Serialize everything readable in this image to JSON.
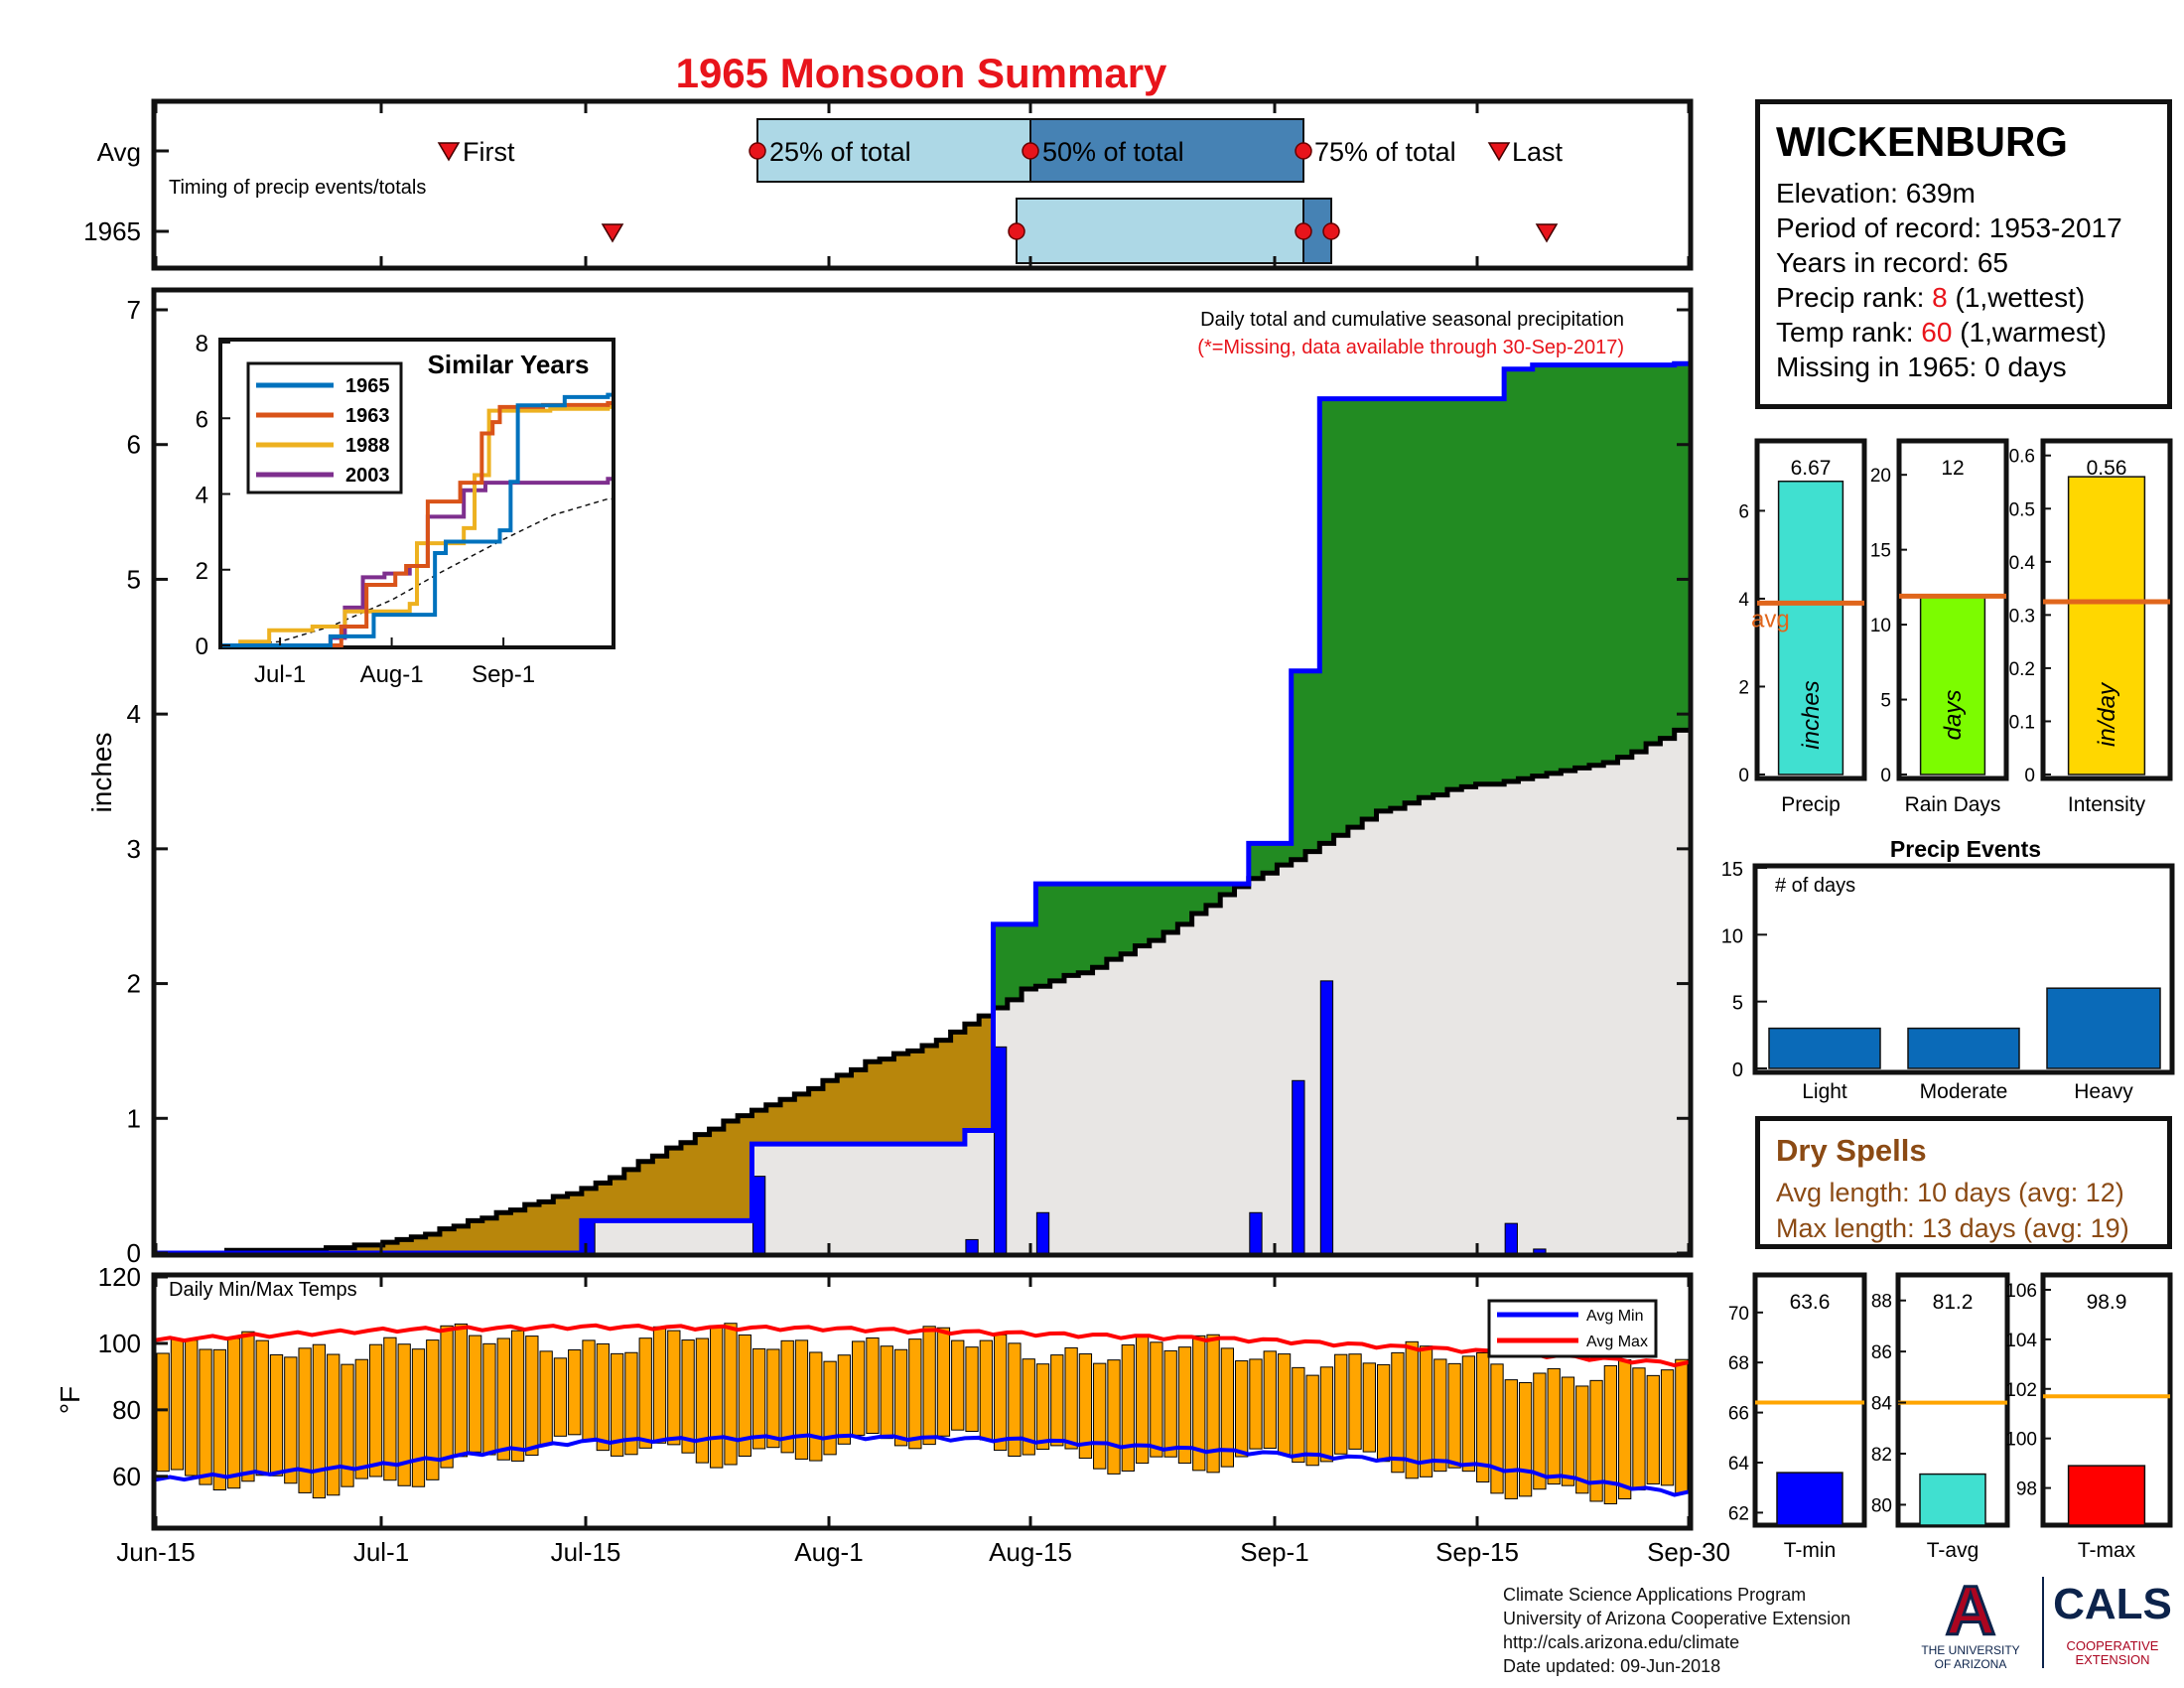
{
  "title": "1965 Monsoon Summary",
  "timing_panel": {
    "row_labels": [
      "Avg",
      "1965"
    ],
    "caption": "Timing of precip events/totals",
    "marker_labels": {
      "first": "First",
      "p25": "25% of total",
      "p50": "50% of total",
      "p75": "75% of total",
      "last": "Last"
    }
  },
  "main_panel": {
    "title": "Daily total and cumulative seasonal precipitation",
    "note": "(*=Missing, data available through 30-Sep-2017)",
    "ylabel": "inches",
    "y_ticks": [
      "0",
      "1",
      "2",
      "3",
      "4",
      "5",
      "6",
      "7"
    ],
    "x_ticks": [
      "Jun-15",
      "Jul-1",
      "Jul-15",
      "Aug-1",
      "Aug-15",
      "Sep-1",
      "Sep-15",
      "Sep-30"
    ]
  },
  "similar_years": {
    "title": "Similar Years",
    "legend": [
      "1965",
      "1963",
      "1988",
      "2003"
    ],
    "y_ticks": [
      "0",
      "2",
      "4",
      "6",
      "8"
    ],
    "x_ticks": [
      "Jul-1",
      "Aug-1",
      "Sep-1"
    ]
  },
  "temp_panel": {
    "caption": "Daily Min/Max Temps",
    "ylabel": "°F",
    "y_ticks": [
      "60",
      "80",
      "100",
      "120"
    ],
    "legend": [
      "Avg Min",
      "Avg Max"
    ]
  },
  "station": {
    "name": "WICKENBURG",
    "elevation_label": "Elevation: 639m",
    "period_label": "Period of record: 1953-2017",
    "years_label": "Years in record: 65",
    "precip_rank_prefix": "Precip rank: ",
    "precip_rank_value": "8",
    "precip_rank_suffix": " (1,wettest)",
    "temp_rank_prefix": "Temp rank: ",
    "temp_rank_value": "60",
    "temp_rank_suffix": " (1,warmest)",
    "missing_label": "Missing in 1965: 0 days"
  },
  "summary_bars": [
    {
      "xlabel": "Precip",
      "unit": "inches",
      "value_label": "6.67",
      "value": 6.67,
      "avg": 3.9,
      "ymax": 7.5,
      "ticks": [
        "0",
        "2",
        "4",
        "6"
      ],
      "avg_label": "avg",
      "color": "#40e0d0"
    },
    {
      "xlabel": "Rain Days",
      "unit": "days",
      "value_label": "12",
      "value": 12,
      "avg": 11.9,
      "ymax": 22,
      "ticks": [
        "0",
        "5",
        "10",
        "15",
        "20"
      ],
      "color": "#7cfc00"
    },
    {
      "xlabel": "Intensity",
      "unit": "in/day",
      "value_label": "0.56",
      "value": 0.56,
      "avg": 0.325,
      "ymax": 0.62,
      "ticks": [
        "0",
        "0.1",
        "0.2",
        "0.3",
        "0.4",
        "0.5",
        "0.6"
      ],
      "color": "#ffd700"
    }
  ],
  "precip_events": {
    "title": "Precip Events",
    "caption": "# of days",
    "categories": [
      "Light",
      "Moderate",
      "Heavy"
    ],
    "values": [
      3,
      3,
      6
    ],
    "y_ticks": [
      "0",
      "5",
      "10",
      "15"
    ]
  },
  "dry_spells": {
    "title": "Dry Spells",
    "avg_label": "Avg length: 10 days (avg: 12)",
    "max_label": "Max length: 13 days (avg: 19)"
  },
  "temp_bars": [
    {
      "xlabel": "T-min",
      "value_label": "63.6",
      "value": 63.6,
      "avg": 66.4,
      "ymin": 61.5,
      "ymax": 71.5,
      "ticks": [
        "62",
        "64",
        "66",
        "68",
        "70"
      ],
      "color": "#0000ff"
    },
    {
      "xlabel": "T-avg",
      "value_label": "81.2",
      "value": 81.2,
      "avg": 84.0,
      "ymin": 79.2,
      "ymax": 89.0,
      "ticks": [
        "80",
        "82",
        "84",
        "86",
        "88"
      ],
      "color": "#40e0d0"
    },
    {
      "xlabel": "T-max",
      "value_label": "98.9",
      "value": 98.9,
      "avg": 101.7,
      "ymin": 96.5,
      "ymax": 106.6,
      "ticks": [
        "98",
        "100",
        "102",
        "104",
        "106"
      ],
      "color": "#ff0000"
    }
  ],
  "footer": {
    "line1": "Climate Science Applications Program",
    "line2": "University of Arizona Cooperative Extension",
    "line3": "http://cals.arizona.edu/climate",
    "line4": " Date updated: 09-Jun-2018"
  },
  "logos": {
    "ua_letter": "A",
    "ua_text1": "THE UNIVERSITY",
    "ua_text2": "OF ARIZONA",
    "cals_title": "CALS",
    "cals_text1": "COOPERATIVE",
    "cals_text2": "EXTENSION"
  },
  "chart_data": [
    {
      "type": "area",
      "name": "cumulative-precip",
      "x_range": [
        "Jun-15",
        "Sep-30"
      ],
      "ylim": [
        0,
        7
      ],
      "ylabel": "inches",
      "daily_precip": [
        {
          "day": "Jul-15",
          "value": 0.24
        },
        {
          "day": "Jul-27",
          "value": 0.57
        },
        {
          "day": "Aug-11",
          "value": 0.1
        },
        {
          "day": "Aug-13",
          "value": 1.53
        },
        {
          "day": "Aug-16",
          "value": 0.3
        },
        {
          "day": "Aug-31",
          "value": 0.3
        },
        {
          "day": "Sep-3",
          "value": 1.28
        },
        {
          "day": "Sep-5",
          "value": 2.02
        },
        {
          "day": "Sep-18",
          "value": 0.22
        },
        {
          "day": "Sep-20",
          "value": 0.03
        }
      ],
      "cumulative_1965": [
        {
          "day": "Jun-15",
          "value": 0
        },
        {
          "day": "Jul-15",
          "value": 0.24
        },
        {
          "day": "Jul-27",
          "value": 0.81
        },
        {
          "day": "Aug-11",
          "value": 0.91
        },
        {
          "day": "Aug-13",
          "value": 2.44
        },
        {
          "day": "Aug-16",
          "value": 2.74
        },
        {
          "day": "Aug-31",
          "value": 3.04
        },
        {
          "day": "Sep-3",
          "value": 4.32
        },
        {
          "day": "Sep-5",
          "value": 6.34
        },
        {
          "day": "Sep-18",
          "value": 6.56
        },
        {
          "day": "Sep-20",
          "value": 6.59
        },
        {
          "day": "Sep-30",
          "value": 6.6
        }
      ],
      "cumulative_average": [
        {
          "day": "Jun-15",
          "value": 0
        },
        {
          "day": "Jun-25",
          "value": 0.02
        },
        {
          "day": "Jul-1",
          "value": 0.07
        },
        {
          "day": "Jul-5",
          "value": 0.17
        },
        {
          "day": "Jul-10",
          "value": 0.32
        },
        {
          "day": "Jul-15",
          "value": 0.47
        },
        {
          "day": "Jul-20",
          "value": 0.72
        },
        {
          "day": "Jul-25",
          "value": 0.97
        },
        {
          "day": "Jul-30",
          "value": 1.18
        },
        {
          "day": "Aug-4",
          "value": 1.41
        },
        {
          "day": "Aug-9",
          "value": 1.57
        },
        {
          "day": "Aug-13",
          "value": 1.82
        },
        {
          "day": "Aug-15",
          "value": 1.95
        },
        {
          "day": "Aug-20",
          "value": 2.12
        },
        {
          "day": "Aug-25",
          "value": 2.37
        },
        {
          "day": "Aug-30",
          "value": 2.72
        },
        {
          "day": "Sep-4",
          "value": 2.97
        },
        {
          "day": "Sep-9",
          "value": 3.27
        },
        {
          "day": "Sep-14",
          "value": 3.44
        },
        {
          "day": "Sep-20",
          "value": 3.53
        },
        {
          "day": "Sep-25",
          "value": 3.63
        },
        {
          "day": "Sep-30",
          "value": 3.87
        }
      ]
    },
    {
      "type": "line",
      "name": "similar-years",
      "x_range": [
        "Jun-15",
        "Sep-30"
      ],
      "ylim": [
        0,
        8
      ],
      "series": [
        {
          "name": "1965",
          "color": "#0072bd",
          "points": [
            [
              "Jun-15",
              0
            ],
            [
              "Jul-15",
              0.24
            ],
            [
              "Jul-27",
              0.81
            ],
            [
              "Aug-13",
              2.44
            ],
            [
              "Aug-16",
              2.74
            ],
            [
              "Aug-31",
              3.04
            ],
            [
              "Sep-3",
              4.32
            ],
            [
              "Sep-5",
              6.34
            ],
            [
              "Sep-18",
              6.56
            ],
            [
              "Sep-30",
              6.62
            ]
          ]
        },
        {
          "name": "1963",
          "color": "#d95319",
          "points": [
            [
              "Jun-15",
              0
            ],
            [
              "Jul-18",
              0.5
            ],
            [
              "Jul-25",
              1.6
            ],
            [
              "Aug-2",
              1.9
            ],
            [
              "Aug-5",
              2.1
            ],
            [
              "Aug-11",
              3.8
            ],
            [
              "Aug-20",
              4.3
            ],
            [
              "Aug-26",
              5.6
            ],
            [
              "Aug-29",
              5.9
            ],
            [
              "Aug-31",
              6.3
            ],
            [
              "Sep-12",
              6.35
            ],
            [
              "Sep-30",
              6.4
            ]
          ]
        },
        {
          "name": "1988",
          "color": "#edb120",
          "points": [
            [
              "Jun-15",
              0
            ],
            [
              "Jun-20",
              0.1
            ],
            [
              "Jun-28",
              0.4
            ],
            [
              "Jul-10",
              0.5
            ],
            [
              "Jul-19",
              0.9
            ],
            [
              "Aug-6",
              1.1
            ],
            [
              "Aug-8",
              2.7
            ],
            [
              "Aug-21",
              3.1
            ],
            [
              "Aug-24",
              4.5
            ],
            [
              "Aug-28",
              6.2
            ],
            [
              "Sep-14",
              6.25
            ],
            [
              "Sep-30",
              6.3
            ]
          ]
        },
        {
          "name": "2003",
          "color": "#7e2f8e",
          "points": [
            [
              "Jun-15",
              0
            ],
            [
              "Jul-15",
              0.2
            ],
            [
              "Jul-19",
              1.0
            ],
            [
              "Jul-24",
              1.8
            ],
            [
              "Jul-30",
              1.9
            ],
            [
              "Aug-6",
              2.1
            ],
            [
              "Aug-11",
              3.4
            ],
            [
              "Aug-21",
              4.1
            ],
            [
              "Aug-27",
              4.3
            ],
            [
              "Sep-30",
              4.4
            ]
          ]
        }
      ],
      "average_dashed": [
        [
          "Jun-15",
          0
        ],
        [
          "Jul-1",
          0.1
        ],
        [
          "Jul-15",
          0.5
        ],
        [
          "Aug-1",
          1.2
        ],
        [
          "Aug-15",
          1.95
        ],
        [
          "Sep-1",
          2.8
        ],
        [
          "Sep-15",
          3.45
        ],
        [
          "Sep-30",
          3.87
        ]
      ]
    },
    {
      "type": "bar",
      "name": "daily-temps",
      "ylim": [
        45,
        120
      ],
      "daily_min_approx": "55-72 °F",
      "daily_max_approx": "85-111 °F",
      "avg_min_curve": [
        [
          "Jun-15",
          59
        ],
        [
          "Jun-30",
          63
        ],
        [
          "Jul-15",
          70.5
        ],
        [
          "Aug-1",
          72
        ],
        [
          "Aug-15",
          71
        ],
        [
          "Sep-1",
          67
        ],
        [
          "Sep-15",
          64
        ],
        [
          "Sep-30",
          55
        ]
      ],
      "avg_max_curve": [
        [
          "Jun-15",
          101
        ],
        [
          "Jul-1",
          104
        ],
        [
          "Jul-15",
          105
        ],
        [
          "Aug-1",
          104.5
        ],
        [
          "Aug-15",
          103
        ],
        [
          "Sep-1",
          101
        ],
        [
          "Sep-15",
          98
        ],
        [
          "Sep-30",
          94
        ]
      ]
    }
  ]
}
